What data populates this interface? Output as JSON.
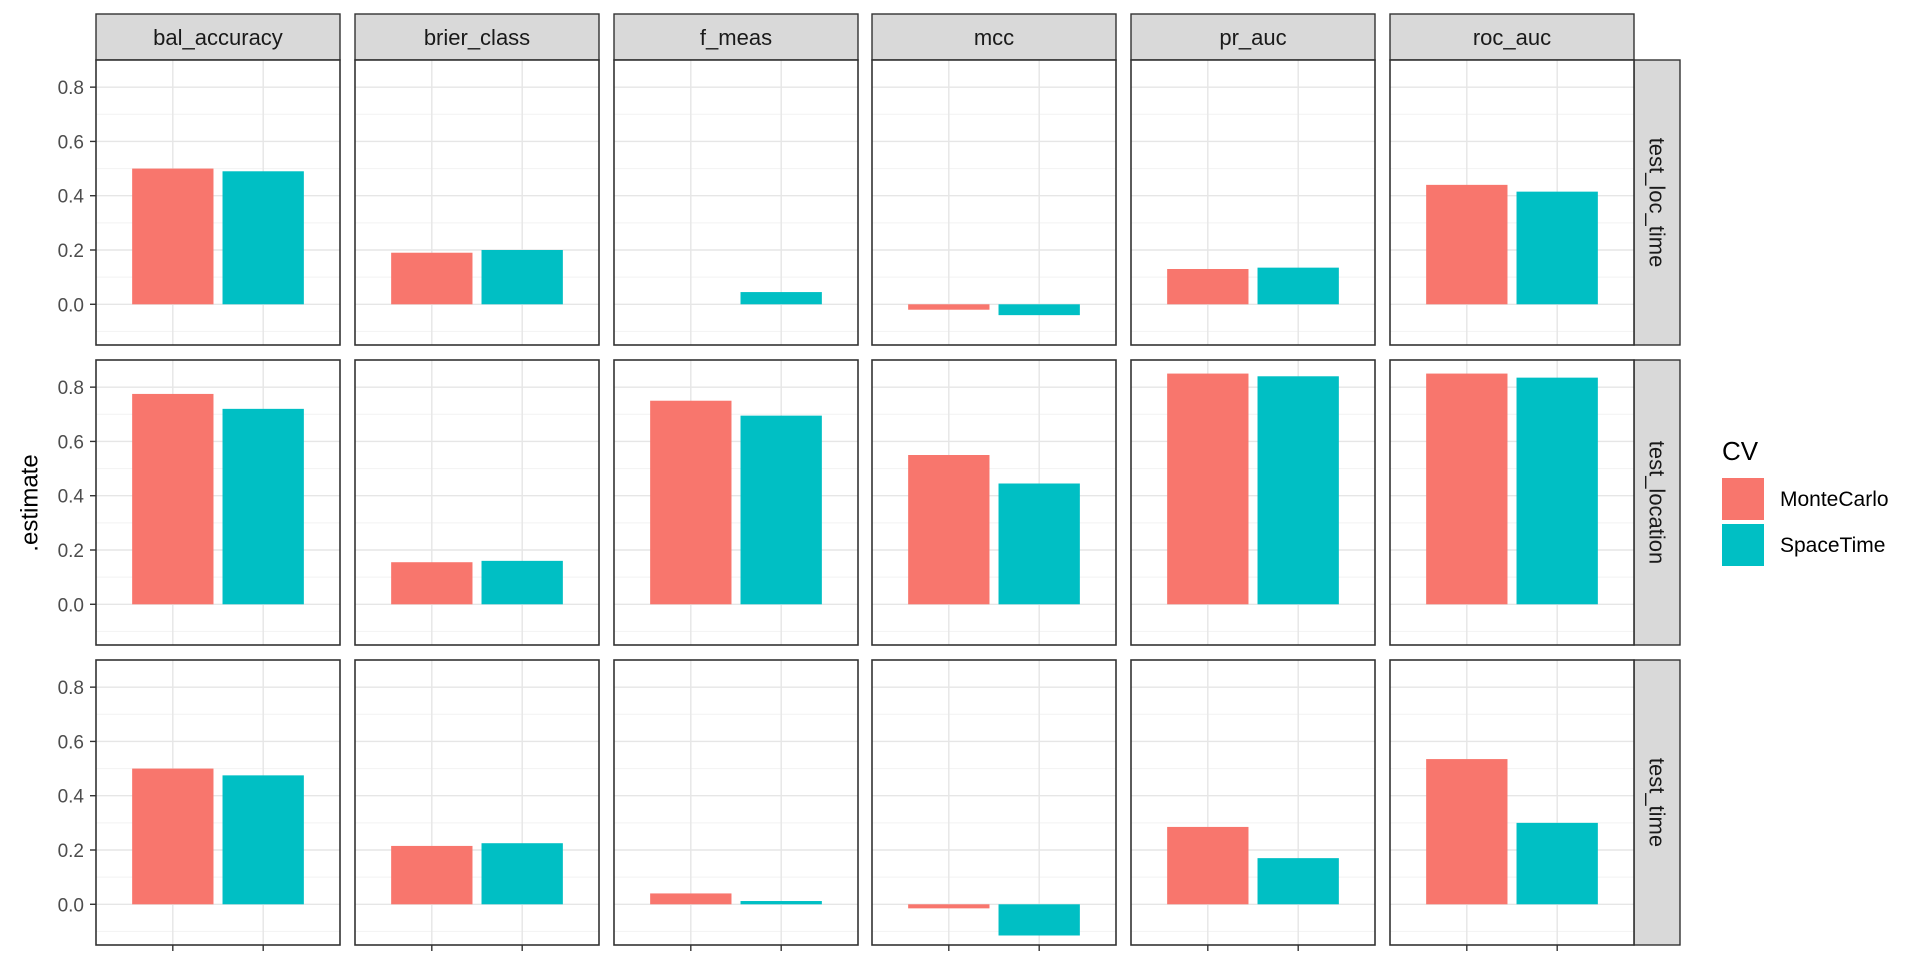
{
  "chart_data": {
    "type": "bar",
    "facet_columns": [
      "bal_accuracy",
      "brier_class",
      "f_meas",
      "mcc",
      "pr_auc",
      "roc_auc"
    ],
    "facet_rows": [
      "test_loc_time",
      "test_location",
      "test_time"
    ],
    "categories": [
      "MonteCarlo",
      "SpaceTime"
    ],
    "ylabel": ".estimate",
    "xlabel": "",
    "ylim": [
      -0.15,
      0.9
    ],
    "yticks": [
      "0.0",
      "0.2",
      "0.4",
      "0.6",
      "0.8"
    ],
    "legend": {
      "title": "CV",
      "placement": "right",
      "entries": [
        {
          "name": "MonteCarlo",
          "color": "#F8766D"
        },
        {
          "name": "SpaceTime",
          "color": "#00BFC4"
        }
      ]
    },
    "grid": true,
    "values": {
      "test_loc_time": {
        "bal_accuracy": [
          0.5,
          0.49
        ],
        "brier_class": [
          0.19,
          0.2
        ],
        "f_meas": [
          0.0,
          0.045
        ],
        "mcc": [
          -0.02,
          -0.04
        ],
        "pr_auc": [
          0.13,
          0.135
        ],
        "roc_auc": [
          0.44,
          0.415
        ]
      },
      "test_location": {
        "bal_accuracy": [
          0.775,
          0.72
        ],
        "brier_class": [
          0.155,
          0.16
        ],
        "f_meas": [
          0.75,
          0.695
        ],
        "mcc": [
          0.55,
          0.445
        ],
        "pr_auc": [
          0.85,
          0.84
        ],
        "roc_auc": [
          0.85,
          0.835
        ]
      },
      "test_time": {
        "bal_accuracy": [
          0.5,
          0.475
        ],
        "brier_class": [
          0.215,
          0.225
        ],
        "f_meas": [
          0.04,
          0.012
        ],
        "mcc": [
          -0.015,
          -0.115
        ],
        "pr_auc": [
          0.285,
          0.17
        ],
        "roc_auc": [
          0.535,
          0.3
        ]
      }
    }
  }
}
